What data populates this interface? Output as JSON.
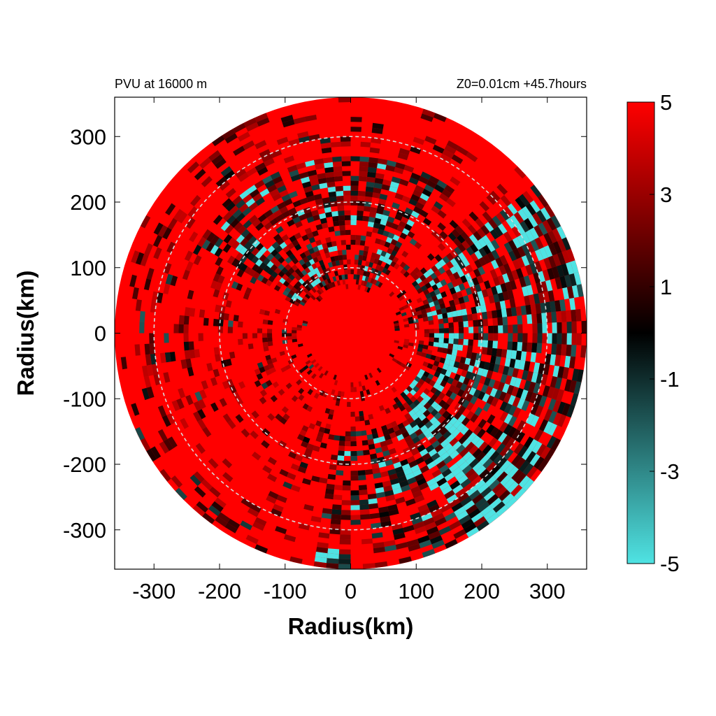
{
  "chart_data": {
    "type": "heatmap",
    "title_left": "PVU at 16000 m",
    "title_right": "Z0=0.01cm  +45.7hours",
    "xlabel": "Radius(km)",
    "ylabel": "Radius(km)",
    "xlim": [
      -360,
      360
    ],
    "ylim": [
      -360,
      360
    ],
    "x_ticks": [
      -300,
      -200,
      -100,
      0,
      100,
      200,
      300
    ],
    "y_ticks": [
      300,
      200,
      100,
      0,
      -100,
      -200,
      -300
    ],
    "data_radius_km": 360,
    "reference_circles_km": [
      100,
      200,
      300
    ],
    "colorbar": {
      "min": -5,
      "max": 5,
      "ticks": [
        5,
        3,
        1,
        -1,
        -3,
        -5
      ],
      "colors": {
        "low": "#4fe3e3",
        "mid": "#000000",
        "high": "#ff0000"
      }
    },
    "grid": false
  }
}
